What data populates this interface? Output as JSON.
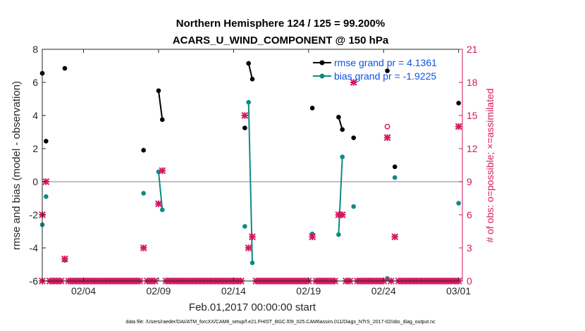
{
  "chart_data": {
    "type": "scatter",
    "title": "Northern Hemisphere 124 / 125 = 99.200%",
    "subtitle": "ACARS_U_WIND_COMPONENT @ 150 hPa",
    "xlabel": "Feb.01,2017 00:00:00 start",
    "ylabel_left": "rmse and bias (model - observation)",
    "ylabel_right": "# of obs: o=possible; ×=assimilated",
    "footer": "data file: /Users/raeder/DAI/ATM_forcXX/CAM6_setup/f.e21.FHIST_BGC.f09_025.CAM6assim.011/Diags_NTrS_2017-02/obs_diag_output.nc",
    "xlim": [
      0.75,
      28.75
    ],
    "ylim_left": [
      -6,
      8
    ],
    "ylim_right": [
      0,
      21
    ],
    "x_ticks": [
      {
        "day": 3.5,
        "label": "02/04"
      },
      {
        "day": 8.5,
        "label": "02/09"
      },
      {
        "day": 13.5,
        "label": "02/14"
      },
      {
        "day": 18.5,
        "label": "02/19"
      },
      {
        "day": 23.5,
        "label": "02/24"
      },
      {
        "day": 28.5,
        "label": "03/01"
      }
    ],
    "y_ticks_left": [
      -6,
      -4,
      -2,
      0,
      2,
      4,
      6,
      8
    ],
    "y_ticks_right": [
      0,
      3,
      6,
      9,
      12,
      15,
      18,
      21
    ],
    "legend": {
      "location": "top-right",
      "entries": [
        {
          "label": "rmse grand pr = 4.1361",
          "color": "#000000"
        },
        {
          "label": "bias grand pr = -1.9225",
          "color": "#0e8a85"
        }
      ]
    },
    "series": [
      {
        "name": "rmse",
        "color": "#000000",
        "segments": [
          [
            [
              0.75,
              6.55
            ]
          ],
          [
            [
              1.0,
              2.45
            ]
          ],
          [
            [
              2.25,
              6.85
            ]
          ],
          [
            [
              7.5,
              1.9
            ]
          ],
          [
            [
              8.5,
              5.5
            ],
            [
              8.75,
              3.75
            ]
          ],
          [
            [
              14.25,
              3.25
            ]
          ],
          [
            [
              14.5,
              7.15
            ],
            [
              14.75,
              6.2
            ]
          ],
          [
            [
              18.75,
              4.45
            ]
          ],
          [
            [
              20.5,
              3.9
            ],
            [
              20.75,
              3.15
            ]
          ],
          [
            [
              21.5,
              2.65
            ]
          ],
          [
            [
              23.75,
              6.7
            ]
          ],
          [
            [
              24.25,
              0.9
            ]
          ],
          [
            [
              28.5,
              4.75
            ]
          ]
        ]
      },
      {
        "name": "bias",
        "color": "#0e8a85",
        "segments": [
          [
            [
              0.75,
              -2.6
            ]
          ],
          [
            [
              1.0,
              -0.9
            ]
          ],
          [
            [
              2.25,
              -4.75
            ]
          ],
          [
            [
              7.5,
              -0.7
            ]
          ],
          [
            [
              8.5,
              0.6
            ],
            [
              8.75,
              -1.7
            ]
          ],
          [
            [
              14.25,
              -2.7
            ]
          ],
          [
            [
              14.5,
              4.8
            ],
            [
              14.75,
              -4.9
            ]
          ],
          [
            [
              18.75,
              -3.15
            ]
          ],
          [
            [
              20.5,
              -3.2
            ],
            [
              20.75,
              1.5
            ]
          ],
          [
            [
              21.5,
              -1.5
            ]
          ],
          [
            [
              23.75,
              -5.85
            ]
          ],
          [
            [
              24.25,
              0.25
            ]
          ],
          [
            [
              28.5,
              -1.3
            ]
          ]
        ]
      }
    ],
    "obs_possible": [
      {
        "x": 23.75,
        "y": 14
      }
    ],
    "obs_assimilated": [
      {
        "x": 0.75,
        "y": 6
      },
      {
        "x": 1.0,
        "y": 9
      },
      {
        "x": 2.25,
        "y": 2
      },
      {
        "x": 7.5,
        "y": 3
      },
      {
        "x": 8.5,
        "y": 7
      },
      {
        "x": 8.75,
        "y": 10
      },
      {
        "x": 14.25,
        "y": 15
      },
      {
        "x": 14.5,
        "y": 3
      },
      {
        "x": 14.75,
        "y": 4
      },
      {
        "x": 18.75,
        "y": 4
      },
      {
        "x": 20.5,
        "y": 6
      },
      {
        "x": 20.75,
        "y": 6
      },
      {
        "x": 21.5,
        "y": 18
      },
      {
        "x": 23.75,
        "y": 13
      },
      {
        "x": 24.25,
        "y": 4
      },
      {
        "x": 28.5,
        "y": 14
      }
    ],
    "obs_assimilated_zero_days": [
      0.75,
      1.25,
      1.5,
      1.75,
      2.0,
      2.5,
      2.75,
      3.0,
      3.25,
      3.5,
      3.75,
      4.0,
      4.25,
      4.5,
      4.75,
      5.0,
      5.25,
      5.5,
      5.75,
      6.0,
      6.25,
      6.5,
      6.75,
      7.0,
      7.25,
      7.75,
      8.0,
      8.25,
      9.0,
      9.25,
      9.5,
      9.75,
      10.0,
      10.25,
      10.5,
      10.75,
      11.0,
      11.25,
      11.5,
      11.75,
      12.0,
      12.25,
      12.5,
      12.75,
      13.0,
      13.25,
      13.5,
      13.75,
      14.0,
      15.0,
      15.25,
      15.5,
      15.75,
      16.0,
      16.25,
      16.5,
      16.75,
      17.0,
      17.25,
      17.5,
      17.75,
      18.0,
      18.25,
      18.5,
      19.0,
      19.25,
      19.5,
      19.75,
      20.0,
      20.25,
      21.0,
      21.25,
      21.75,
      22.0,
      22.25,
      22.5,
      22.75,
      23.0,
      23.25,
      23.5,
      24.0,
      24.5,
      24.75,
      25.0,
      25.25,
      25.5,
      25.75,
      26.0,
      26.25,
      26.5,
      26.75,
      27.0,
      27.25,
      27.5,
      27.75,
      28.0,
      28.25,
      28.5
    ]
  },
  "colors": {
    "rmse": "#000000",
    "bias": "#0e8a85",
    "obs": "#d6175e",
    "legend_text": "#0b52e6",
    "zero_line": "#b9a3ad"
  }
}
